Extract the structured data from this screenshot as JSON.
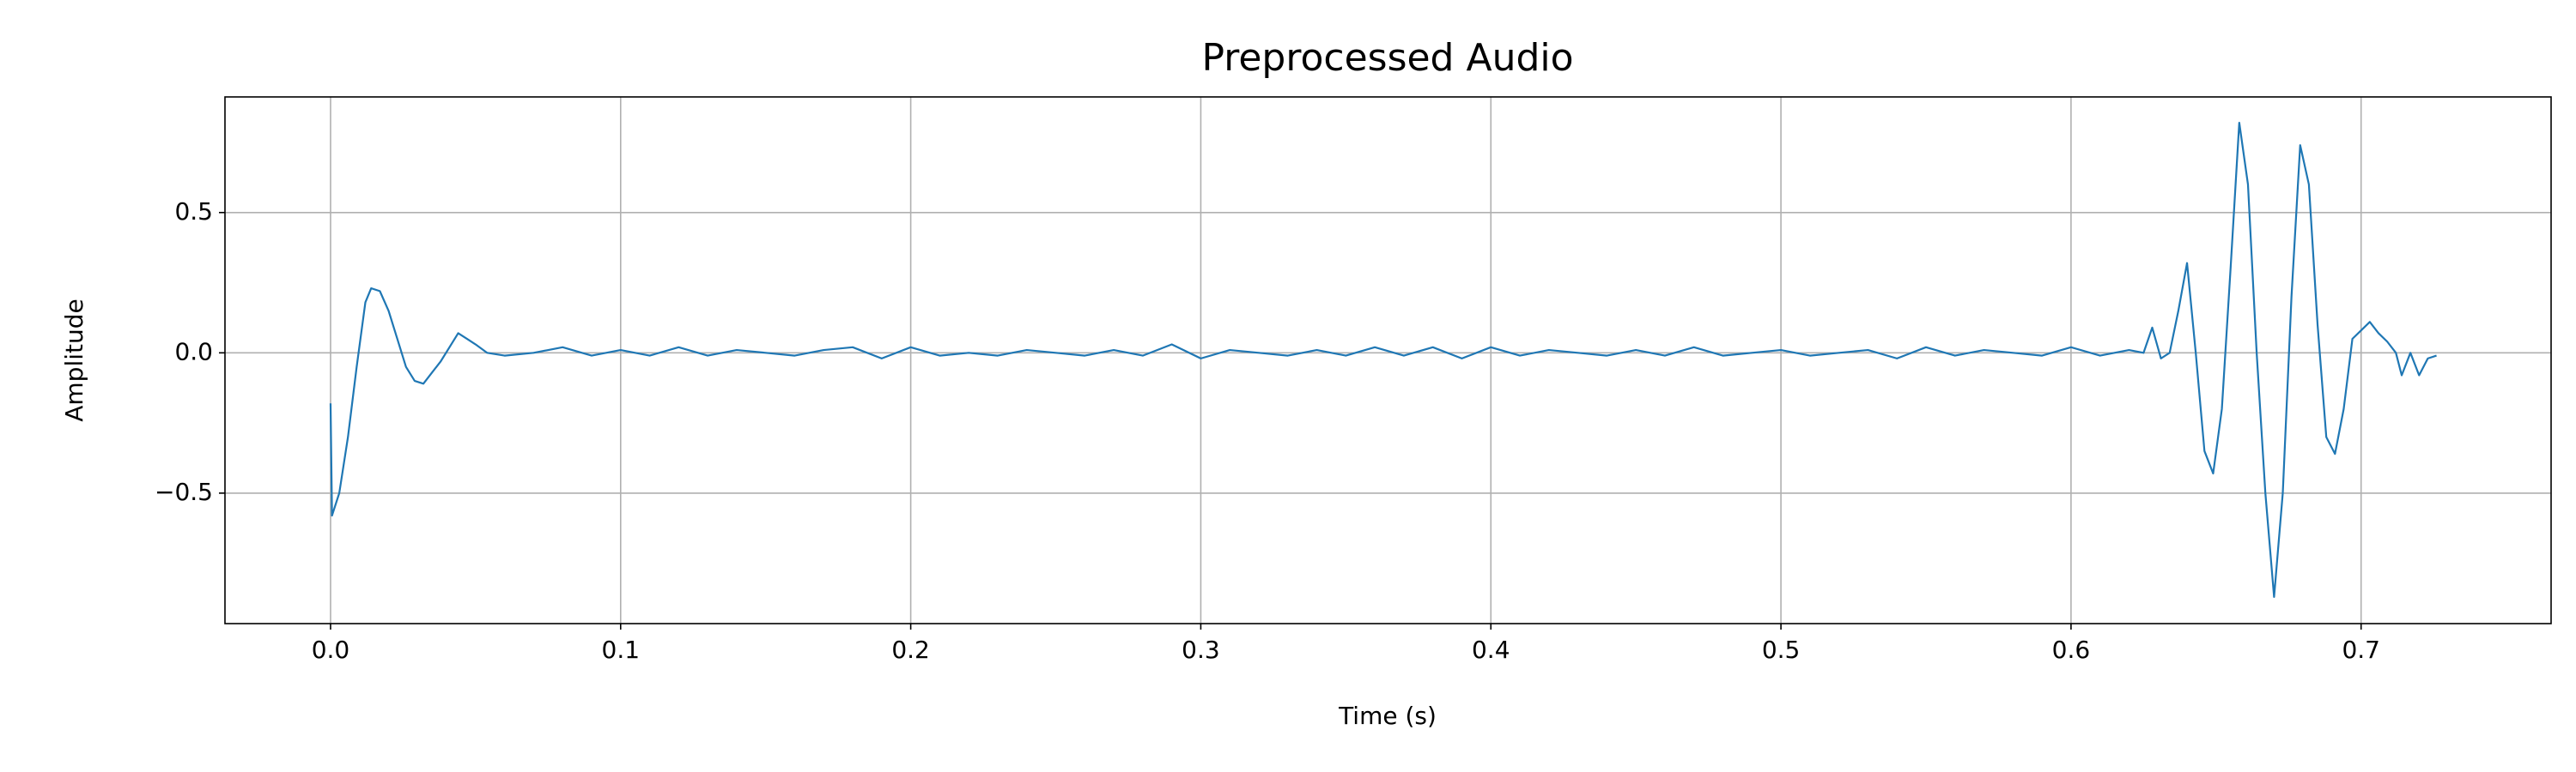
{
  "chart_data": {
    "type": "line",
    "title": "Preprocessed Audio",
    "x_label": "Time (s)",
    "y_label": "Amplitude",
    "x": [
      0.0,
      0.0005,
      0.003,
      0.006,
      0.009,
      0.012,
      0.014,
      0.017,
      0.02,
      0.023,
      0.026,
      0.029,
      0.032,
      0.035,
      0.038,
      0.041,
      0.044,
      0.047,
      0.05,
      0.054,
      0.06,
      0.07,
      0.08,
      0.09,
      0.1,
      0.11,
      0.12,
      0.13,
      0.14,
      0.15,
      0.16,
      0.17,
      0.18,
      0.19,
      0.2,
      0.21,
      0.22,
      0.23,
      0.24,
      0.25,
      0.26,
      0.27,
      0.28,
      0.29,
      0.3,
      0.31,
      0.32,
      0.33,
      0.34,
      0.35,
      0.36,
      0.37,
      0.38,
      0.39,
      0.4,
      0.41,
      0.42,
      0.43,
      0.44,
      0.45,
      0.46,
      0.47,
      0.48,
      0.49,
      0.5,
      0.51,
      0.52,
      0.53,
      0.54,
      0.55,
      0.56,
      0.57,
      0.58,
      0.59,
      0.6,
      0.61,
      0.62,
      0.625,
      0.628,
      0.631,
      0.634,
      0.637,
      0.64,
      0.643,
      0.646,
      0.649,
      0.652,
      0.655,
      0.658,
      0.661,
      0.664,
      0.667,
      0.67,
      0.673,
      0.676,
      0.679,
      0.682,
      0.685,
      0.688,
      0.691,
      0.694,
      0.697,
      0.7,
      0.703,
      0.706,
      0.709,
      0.712,
      0.714,
      0.717,
      0.72,
      0.723,
      0.726
    ],
    "series": [
      {
        "color": "#1f77b4",
        "values": [
          -0.18,
          -0.58,
          -0.5,
          -0.3,
          -0.05,
          0.18,
          0.23,
          0.22,
          0.15,
          0.05,
          -0.05,
          -0.1,
          -0.11,
          -0.07,
          -0.03,
          0.02,
          0.07,
          0.05,
          0.03,
          0.0,
          -0.01,
          0.0,
          0.02,
          -0.01,
          0.01,
          -0.01,
          0.02,
          -0.01,
          0.01,
          0.0,
          -0.01,
          0.01,
          0.02,
          -0.02,
          0.02,
          -0.01,
          0.0,
          -0.01,
          0.01,
          0.0,
          -0.01,
          0.01,
          -0.01,
          0.03,
          -0.02,
          0.01,
          0.0,
          -0.01,
          0.01,
          -0.01,
          0.02,
          -0.01,
          0.02,
          -0.02,
          0.02,
          -0.01,
          0.01,
          0.0,
          -0.01,
          0.01,
          -0.01,
          0.02,
          -0.01,
          0.0,
          0.01,
          -0.01,
          0.0,
          0.01,
          -0.02,
          0.02,
          -0.01,
          0.01,
          0.0,
          -0.01,
          0.02,
          -0.01,
          0.01,
          0.0,
          0.09,
          -0.02,
          0.0,
          0.15,
          0.32,
          0.0,
          -0.35,
          -0.43,
          -0.2,
          0.3,
          0.82,
          0.6,
          0.0,
          -0.5,
          -0.87,
          -0.5,
          0.2,
          0.74,
          0.6,
          0.1,
          -0.3,
          -0.36,
          -0.2,
          0.05,
          0.08,
          0.11,
          0.07,
          0.04,
          0.0,
          -0.08,
          0.0,
          -0.08,
          -0.02,
          -0.01
        ]
      }
    ],
    "xlim": [
      -0.0364,
      0.7655
    ],
    "ylim": [
      -0.965,
      0.912
    ],
    "xticks": [
      {
        "value": 0,
        "label": "0.0"
      },
      0.1,
      0.2,
      0.3,
      0.4,
      0.5,
      0.6,
      0.7
    ],
    "yticks": [
      {
        "value": -0.5,
        "label": "−0.5"
      },
      {
        "value": 0,
        "label": "0.0"
      },
      0.5
    ],
    "grid": true
  }
}
